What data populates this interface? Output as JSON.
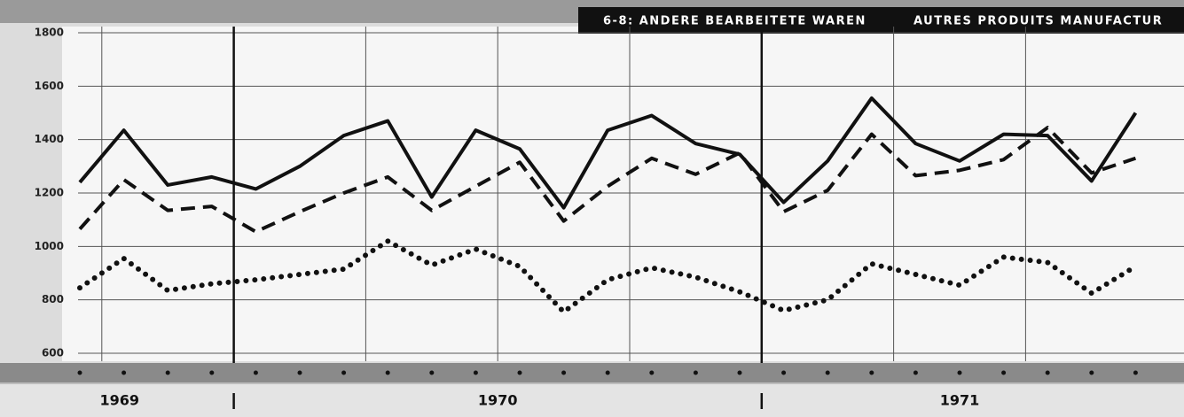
{
  "chart_data": {
    "type": "line",
    "titles": [
      "6-8: ANDERE BEARBEITETE WAREN",
      "AUTRES PRODUITS MANUFACTUR"
    ],
    "categories": [
      null,
      null,
      null,
      null,
      null,
      null,
      null,
      null,
      null,
      null,
      null,
      null,
      null,
      null,
      null,
      null,
      null,
      null,
      null,
      null,
      null,
      null,
      null,
      null,
      null
    ],
    "groups": [
      {
        "label": "1969",
        "count": 4
      },
      {
        "label": "1970",
        "count": 12
      },
      {
        "label": "1971",
        "count": 9
      }
    ],
    "series": [
      {
        "style": "solid",
        "color": "#111111",
        "values": [
          1240,
          1435,
          1230,
          1260,
          1215,
          1300,
          1415,
          1470,
          1185,
          1435,
          1365,
          1145,
          1435,
          1490,
          1385,
          1345,
          1165,
          1320,
          1555,
          1385,
          1320,
          1420,
          1415,
          1245,
          1500
        ]
      },
      {
        "style": "dashed",
        "color": "#111111",
        "values": [
          1065,
          1250,
          1135,
          1150,
          1055,
          1130,
          1200,
          1260,
          1135,
          1225,
          1315,
          1095,
          1225,
          1330,
          1270,
          1350,
          1130,
          1210,
          1420,
          1265,
          1285,
          1325,
          1445,
          1275,
          1330
        ]
      },
      {
        "style": "dotted",
        "color": "#111111",
        "values": [
          845,
          955,
          835,
          860,
          875,
          895,
          915,
          1020,
          930,
          990,
          925,
          755,
          875,
          920,
          885,
          830,
          760,
          800,
          935,
          895,
          855,
          960,
          940,
          825,
          925
        ]
      }
    ],
    "ylim": [
      600,
      1800
    ],
    "yticks": [
      600,
      800,
      1000,
      1200,
      1400,
      1600,
      1800
    ],
    "grid": true
  }
}
